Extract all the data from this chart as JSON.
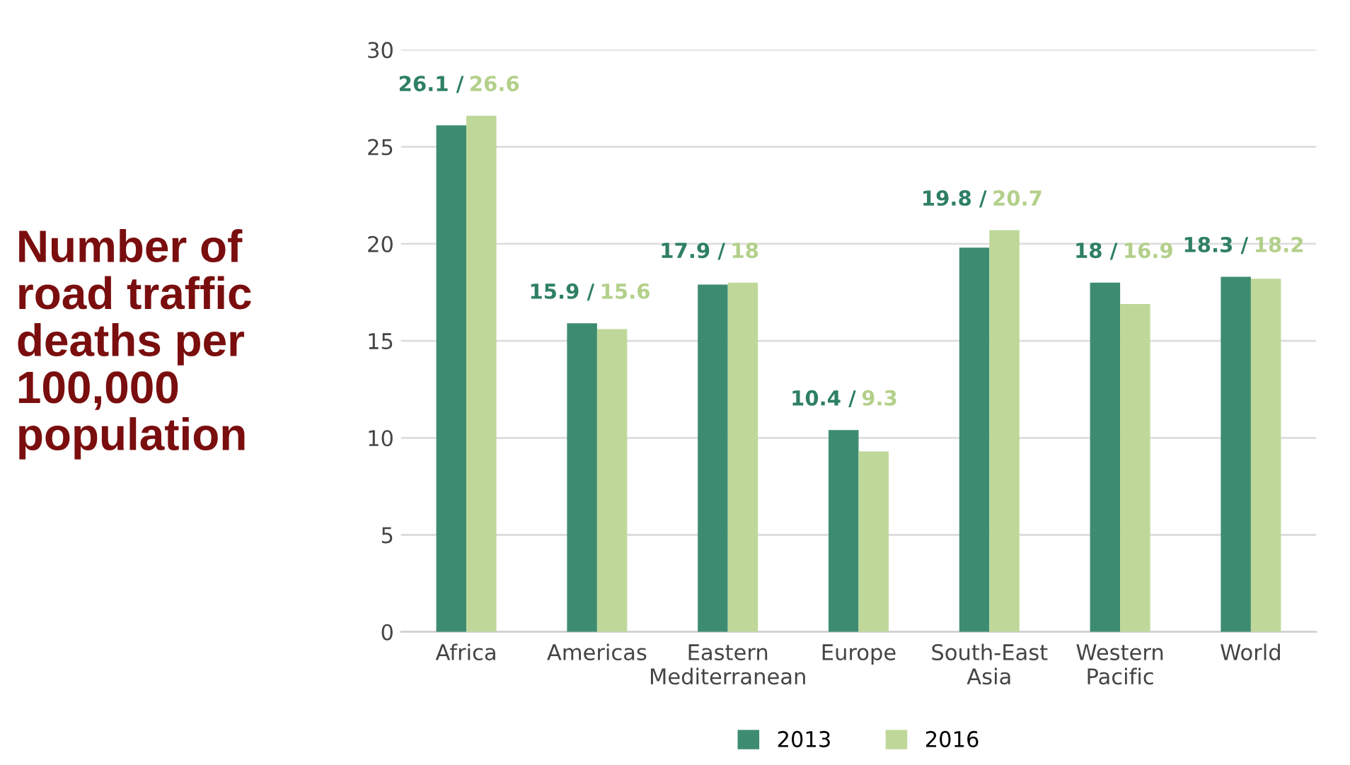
{
  "chart_data": {
    "type": "bar",
    "ylabel": "Number of\nroad traffic\ndeaths per\n100,000\npopulation",
    "categories": [
      "Africa",
      "Americas",
      "Eastern\nMediterranean",
      "Europe",
      "South-East\nAsia",
      "Western\nPacific",
      "World"
    ],
    "series": [
      {
        "name": "2013",
        "color": "#3d8c72",
        "values": [
          26.1,
          15.9,
          17.9,
          10.4,
          19.8,
          18,
          18.3
        ],
        "value_labels": [
          "26.1 /",
          "15.9 /",
          "17.9 /",
          "10.4 /",
          "19.8 /",
          "18 /",
          "18.3 /"
        ]
      },
      {
        "name": "2016",
        "color": "#bfd89a",
        "values": [
          26.6,
          15.6,
          18,
          9.3,
          20.7,
          16.9,
          18.2
        ],
        "value_labels": [
          "26.6",
          "15.6",
          "18",
          "9.3",
          "20.7",
          "16.9",
          "18.2"
        ]
      }
    ],
    "ylim": [
      0,
      30
    ],
    "yticks": [
      0,
      5,
      10,
      15,
      20,
      25,
      30
    ],
    "grid": "y",
    "legend": "bottom"
  }
}
